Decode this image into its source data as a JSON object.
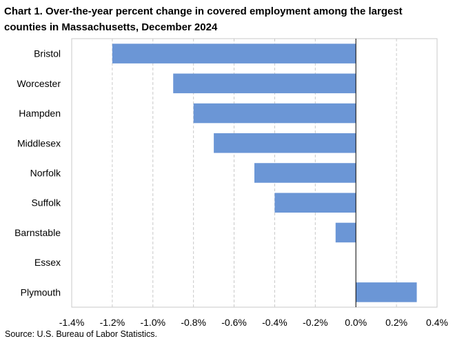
{
  "title": "Chart 1. Over-the-year percent change in covered employment among the largest counties in Massachusetts, December 2024",
  "source": "Source: U.S. Bureau of Labor Statistics.",
  "colors": {
    "bar": "#6b96d6",
    "grid": "#c8c8c8",
    "axis": "#000000"
  },
  "chart_data": {
    "type": "bar",
    "orientation": "horizontal",
    "categories": [
      "Bristol",
      "Worcester",
      "Hampden",
      "Middlesex",
      "Norfolk",
      "Suffolk",
      "Barnstable",
      "Essex",
      "Plymouth"
    ],
    "values": [
      -1.2,
      -0.9,
      -0.8,
      -0.7,
      -0.5,
      -0.4,
      -0.1,
      0.0,
      0.3
    ],
    "xlim": [
      -1.4,
      0.4
    ],
    "xticks": [
      -1.4,
      -1.2,
      -1.0,
      -0.8,
      -0.6,
      -0.4,
      -0.2,
      0.0,
      0.2,
      0.4
    ],
    "xtick_labels": [
      "-1.4%",
      "-1.2%",
      "-1.0%",
      "-0.8%",
      "-0.6%",
      "-0.4%",
      "-0.2%",
      "0.0%",
      "0.2%",
      "0.4%"
    ],
    "grid": "vertical dashed",
    "legend": "none"
  }
}
